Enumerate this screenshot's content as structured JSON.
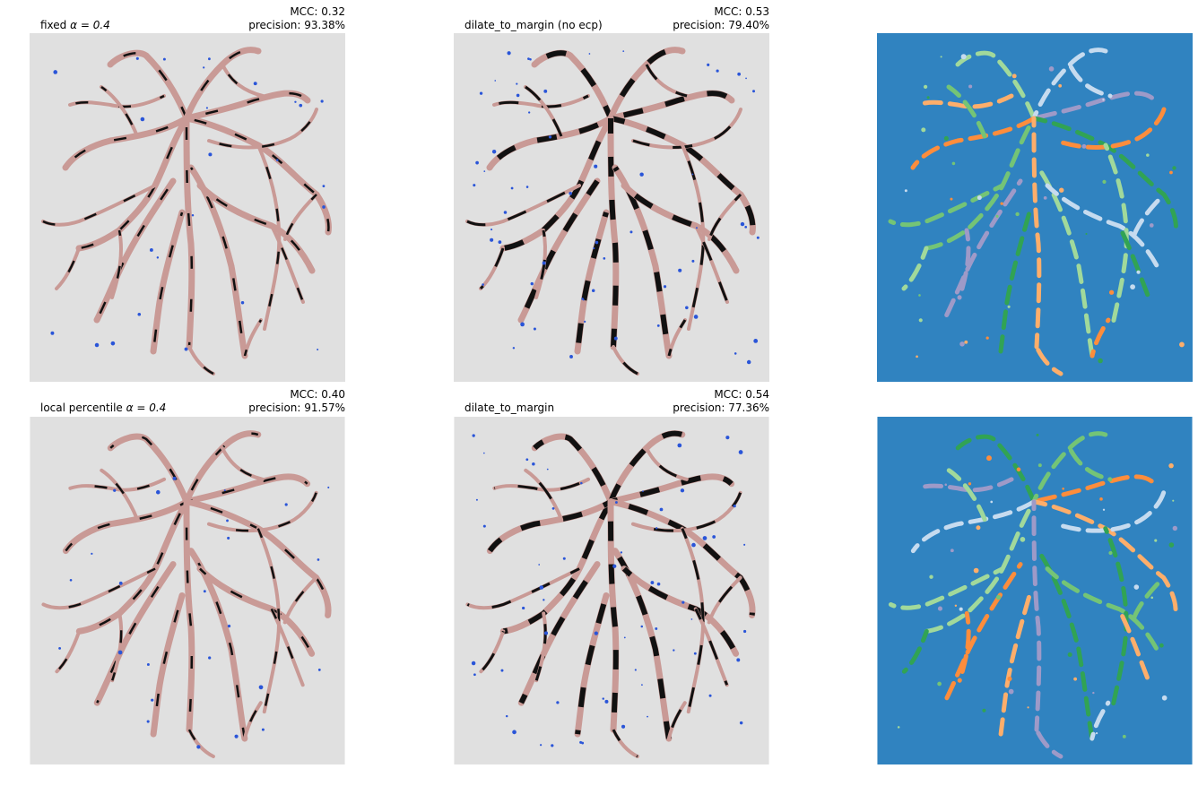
{
  "figure": {
    "panels": [
      {
        "id": "r1c1",
        "title_left_prefix": "fixed ",
        "title_left_alpha": "α = 0.4",
        "mcc": "MCC: 0.32",
        "precision": "precision: 93.38%",
        "kind": "overlay"
      },
      {
        "id": "r1c2",
        "title_left": "dilate_to_margin (no ecp)",
        "mcc": "MCC: 0.53",
        "precision": "precision: 79.40%",
        "kind": "overlay"
      },
      {
        "id": "r1c3",
        "kind": "labels"
      },
      {
        "id": "r2c1",
        "title_left_prefix": "local percentile ",
        "title_left_alpha": "α = 0.4",
        "mcc": "MCC: 0.40",
        "precision": "precision: 91.57%",
        "kind": "overlay"
      },
      {
        "id": "r2c2",
        "title_left": "dilate_to_margin",
        "mcc": "MCC: 0.54",
        "precision": "precision: 77.36%",
        "kind": "overlay"
      },
      {
        "id": "r2c3",
        "kind": "labels"
      }
    ],
    "colors": {
      "panel_bg": "#e0e0e0",
      "vessel": "#c99a96",
      "segment": "#111111",
      "false_pos": "#2a55d8",
      "label_bg": "#3083c0",
      "label_palette": [
        "#fd8d3c",
        "#fdae6b",
        "#a1d99b",
        "#c6dbef",
        "#9e9ac8",
        "#31a354",
        "#74c476"
      ]
    }
  }
}
